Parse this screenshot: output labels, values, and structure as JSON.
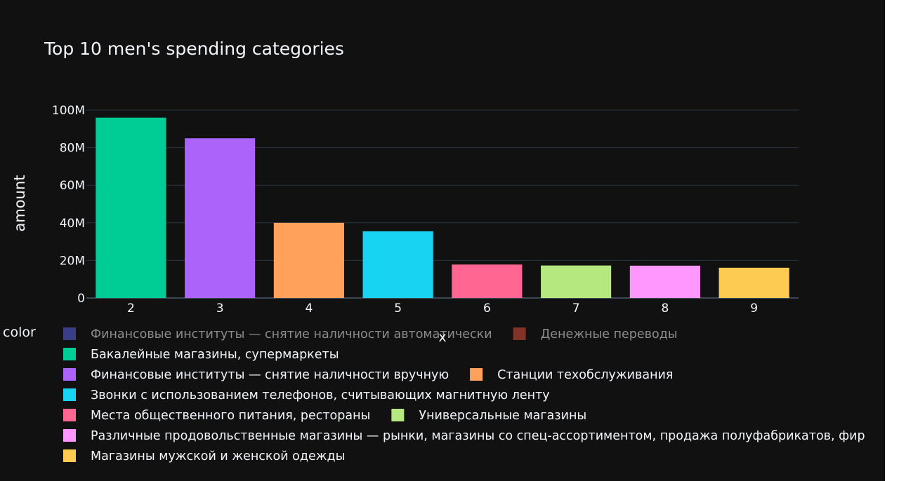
{
  "chart_data": {
    "type": "bar",
    "title": "Top 10 men's spending categories",
    "xlabel": "x",
    "ylabel": "amount",
    "ylim": [
      0,
      100000000
    ],
    "yticks": [
      0,
      20000000,
      40000000,
      60000000,
      80000000,
      100000000
    ],
    "ytick_labels": [
      "0",
      "20M",
      "40M",
      "60M",
      "80M",
      "100M"
    ],
    "grid": true,
    "categories": [
      "2",
      "3",
      "4",
      "5",
      "6",
      "7",
      "8",
      "9"
    ],
    "legend_title": "color",
    "legend_placement": "bottom",
    "series": [
      {
        "name": "Финансовые институты — снятие наличности автоматически",
        "color": "#636efa",
        "category": null,
        "value": null,
        "hidden": true
      },
      {
        "name": "Денежные переводы",
        "color": "#ef553b",
        "category": null,
        "value": null,
        "hidden": true
      },
      {
        "name": "Бакалейные магазины, супермаркеты",
        "color": "#00cc96",
        "category": "2",
        "value": 96000000,
        "hidden": false
      },
      {
        "name": "Финансовые институты — снятие наличности вручную",
        "color": "#ab63fa",
        "category": "3",
        "value": 85000000,
        "hidden": false
      },
      {
        "name": "Станции техобслуживания",
        "color": "#ffa15a",
        "category": "4",
        "value": 40000000,
        "hidden": false
      },
      {
        "name": "Звонки с использованием телефонов, считывающих магнитную ленту",
        "color": "#19d3f3",
        "category": "5",
        "value": 35500000,
        "hidden": false
      },
      {
        "name": "Места общественного питания, рестораны",
        "color": "#ff6692",
        "category": "6",
        "value": 17800000,
        "hidden": false
      },
      {
        "name": "Универсальные магазины",
        "color": "#b6e880",
        "category": "7",
        "value": 17300000,
        "hidden": false
      },
      {
        "name": "Различные продовольственные магазины — рынки, магазины со спец-ассортиментом, продажа полуфабрикатов, фир",
        "color": "#ff97ff",
        "category": "8",
        "value": 17200000,
        "hidden": false
      },
      {
        "name": "Магазины мужской и женской одежды",
        "color": "#fecb52",
        "category": "9",
        "value": 16100000,
        "hidden": false
      }
    ]
  }
}
